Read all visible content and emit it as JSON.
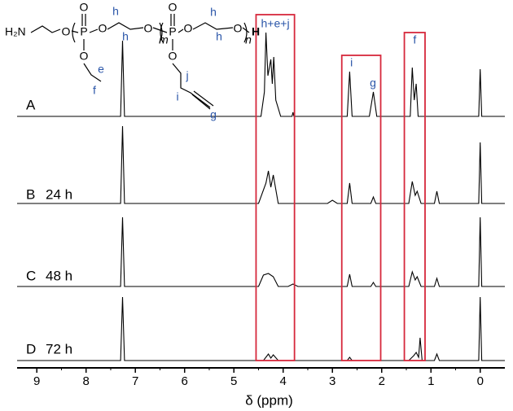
{
  "chart_data": {
    "type": "line",
    "x_label": "δ (ppm)",
    "xlim": [
      9.4,
      -0.5
    ],
    "xticks": [
      9,
      8,
      7,
      6,
      5,
      4,
      3,
      2,
      1,
      0
    ],
    "xminorticks": [
      8.5,
      7.5,
      6.5,
      5.5,
      4.5,
      3.5,
      2.5,
      1.5,
      0.5
    ],
    "series": [
      {
        "name": "A",
        "time": null,
        "color": "#000000",
        "x": [
          9.4,
          7.3,
          7.26,
          7.22,
          4.45,
          4.38,
          4.35,
          4.31,
          4.28,
          4.25,
          4.22,
          4.19,
          4.15,
          4.05,
          3.82,
          3.8,
          3.78,
          2.7,
          2.65,
          2.6,
          2.25,
          2.17,
          2.1,
          1.42,
          1.38,
          1.34,
          1.3,
          1.26,
          0.03,
          0,
          -0.03,
          -0.5
        ],
        "values": [
          0,
          0,
          93,
          0,
          0,
          30,
          103,
          50,
          60,
          70,
          40,
          73,
          20,
          0,
          0,
          5,
          0,
          0,
          55,
          0,
          0,
          30,
          0,
          0,
          60,
          20,
          40,
          0,
          0,
          58,
          0,
          0
        ]
      },
      {
        "name": "B",
        "time": "24 h",
        "color": "#000000",
        "x": [
          9.4,
          7.3,
          7.26,
          7.22,
          4.5,
          4.35,
          4.3,
          4.25,
          4.2,
          4.1,
          3.1,
          3.0,
          2.9,
          2.7,
          2.65,
          2.6,
          2.22,
          2.17,
          2.12,
          1.45,
          1.38,
          1.32,
          1.28,
          1.2,
          0.93,
          0.88,
          0.83,
          0.03,
          0,
          -0.03,
          -0.5
        ],
        "values": [
          0,
          0,
          95,
          0,
          0,
          25,
          40,
          20,
          35,
          0,
          0,
          4,
          0,
          0,
          25,
          0,
          0,
          8,
          0,
          0,
          27,
          10,
          15,
          0,
          0,
          15,
          0,
          0,
          75,
          0,
          0
        ]
      },
      {
        "name": "C",
        "time": "48 h",
        "color": "#000000",
        "x": [
          9.4,
          7.3,
          7.26,
          7.22,
          4.5,
          4.4,
          4.3,
          4.2,
          4.1,
          3.9,
          3.8,
          3.7,
          2.7,
          2.65,
          2.6,
          2.22,
          2.17,
          2.12,
          1.45,
          1.38,
          1.32,
          1.28,
          1.2,
          0.93,
          0.88,
          0.83,
          0.03,
          0,
          -0.03,
          -0.5
        ],
        "values": [
          0,
          0,
          85,
          0,
          0,
          14,
          16,
          12,
          0,
          0,
          3,
          0,
          0,
          15,
          0,
          0,
          5,
          0,
          0,
          18,
          8,
          12,
          0,
          0,
          10,
          0,
          0,
          85,
          0,
          0
        ]
      },
      {
        "name": "D",
        "time": "72 h",
        "color": "#000000",
        "x": [
          9.4,
          7.3,
          7.26,
          7.22,
          4.4,
          4.3,
          4.25,
          4.2,
          4.1,
          2.7,
          2.65,
          2.6,
          1.45,
          1.35,
          1.3,
          1.25,
          1.22,
          1.18,
          0.93,
          0.88,
          0.83,
          0.03,
          0,
          -0.03,
          -0.5
        ],
        "values": [
          0,
          0,
          78,
          0,
          0,
          8,
          3,
          7,
          0,
          0,
          4,
          0,
          0,
          6,
          10,
          4,
          28,
          0,
          0,
          8,
          0,
          0,
          78,
          0,
          0
        ]
      }
    ],
    "boxes": [
      {
        "from": 4.55,
        "to": 3.77,
        "labels": [
          "h+e+j"
        ]
      },
      {
        "from": 2.81,
        "to": 2.02,
        "labels": [
          "i",
          "g"
        ]
      },
      {
        "from": 1.54,
        "to": 1.12,
        "labels": [
          "f"
        ]
      }
    ],
    "box_color": "#d6283c",
    "structure": {
      "labels": [
        "H₂N",
        "O",
        "P",
        "O",
        "O",
        "h",
        "h",
        "O",
        "m",
        "P",
        "O",
        "O",
        "h",
        "h",
        "O",
        "n",
        "H",
        "O",
        "e",
        "f",
        "O",
        "j",
        "i",
        "g"
      ]
    }
  }
}
